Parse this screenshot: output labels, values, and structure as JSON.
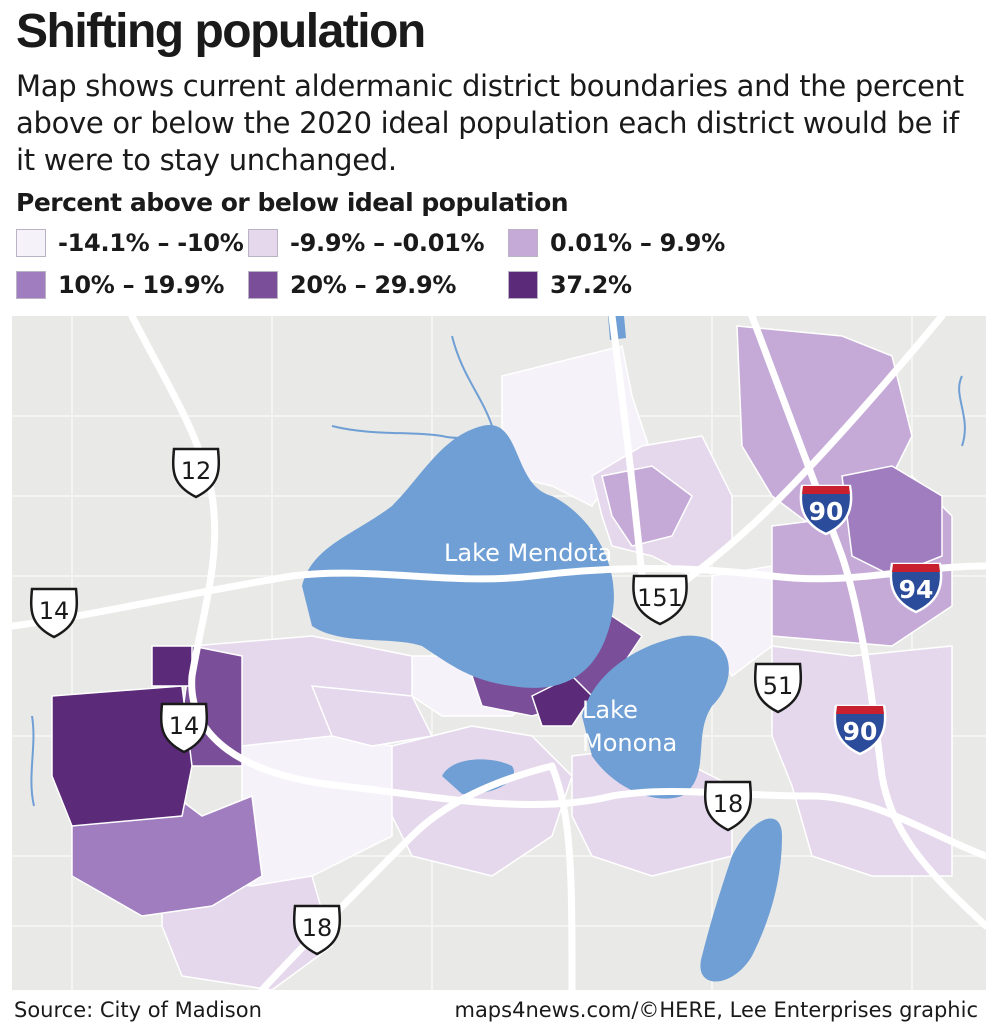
{
  "title": "Shifting population",
  "subtitle": "Map shows current aldermanic district boundaries and the percent above or below the 2020 ideal population each district would be if it were to stay unchanged.",
  "legend": {
    "title": "Percent above or below ideal population",
    "items": [
      {
        "label": "-14.1% – -10%",
        "color": "#f6f2fa"
      },
      {
        "label": "-9.9% – -0.01%",
        "color": "#e5d8ec"
      },
      {
        "label": "0.01% – 9.9%",
        "color": "#c5aad7"
      },
      {
        "label": "10% – 19.9%",
        "color": "#a07dbf"
      },
      {
        "label": "20% – 29.9%",
        "color": "#7a4e98"
      },
      {
        "label": "37.2%",
        "color": "#5b2a78"
      }
    ]
  },
  "map": {
    "lakes": {
      "mendota": "Lake Mendota",
      "monona_line1": "Lake",
      "monona_line2": "Monona"
    },
    "highways": {
      "us12": "12",
      "us14_west": "14",
      "us14_south": "14",
      "us151": "151",
      "us51": "51",
      "us18_east": "18",
      "us18_south": "18",
      "i90_north": "90",
      "i94": "94",
      "i90_south": "90"
    },
    "colors": {
      "water": "#6f9fd4",
      "land": "#e9e9e7",
      "road": "#ffffff",
      "interstate": "#2b4b9b",
      "interstate_top": "#c8202f"
    }
  },
  "footer": {
    "source": "Source: City of Madison",
    "credit": "maps4news.com/©HERE, Lee Enterprises graphic"
  }
}
